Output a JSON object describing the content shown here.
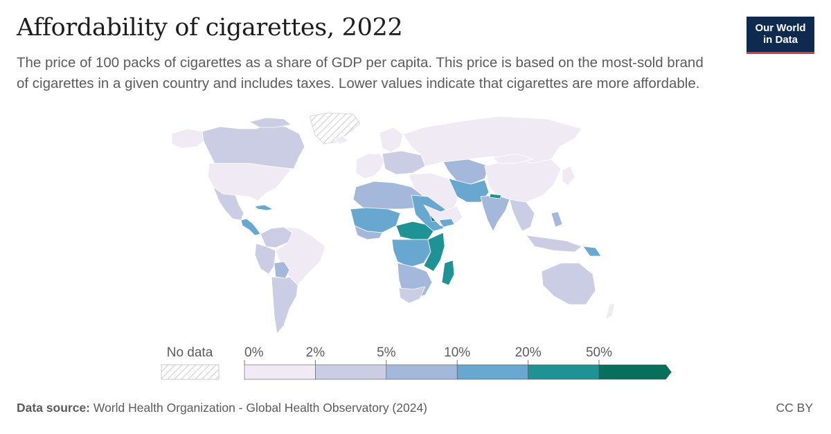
{
  "title": "Affordability of cigarettes, 2022",
  "subtitle": "The price of 100 packs of cigarettes as a share of GDP per capita. This price is based on the most-sold brand of cigarettes in a given country and includes taxes. Lower values indicate that cigarettes are more affordable.",
  "logo": {
    "line1": "Our World",
    "line2": "in Data"
  },
  "source": {
    "label": "Data source:",
    "text": "World Health Organization - Global Health Observatory (2024)"
  },
  "license": "CC BY",
  "colors": {
    "no_data_stroke": "#c8c8c8",
    "bins": [
      "#efeaf3",
      "#cacde3",
      "#a4b8db",
      "#68a7cf",
      "#1e9295",
      "#086f5d"
    ],
    "border": "#ffffff"
  },
  "legend": {
    "no_data_label": "No data",
    "ticks": [
      "0%",
      "2%",
      "5%",
      "10%",
      "20%",
      "50%"
    ]
  }
}
